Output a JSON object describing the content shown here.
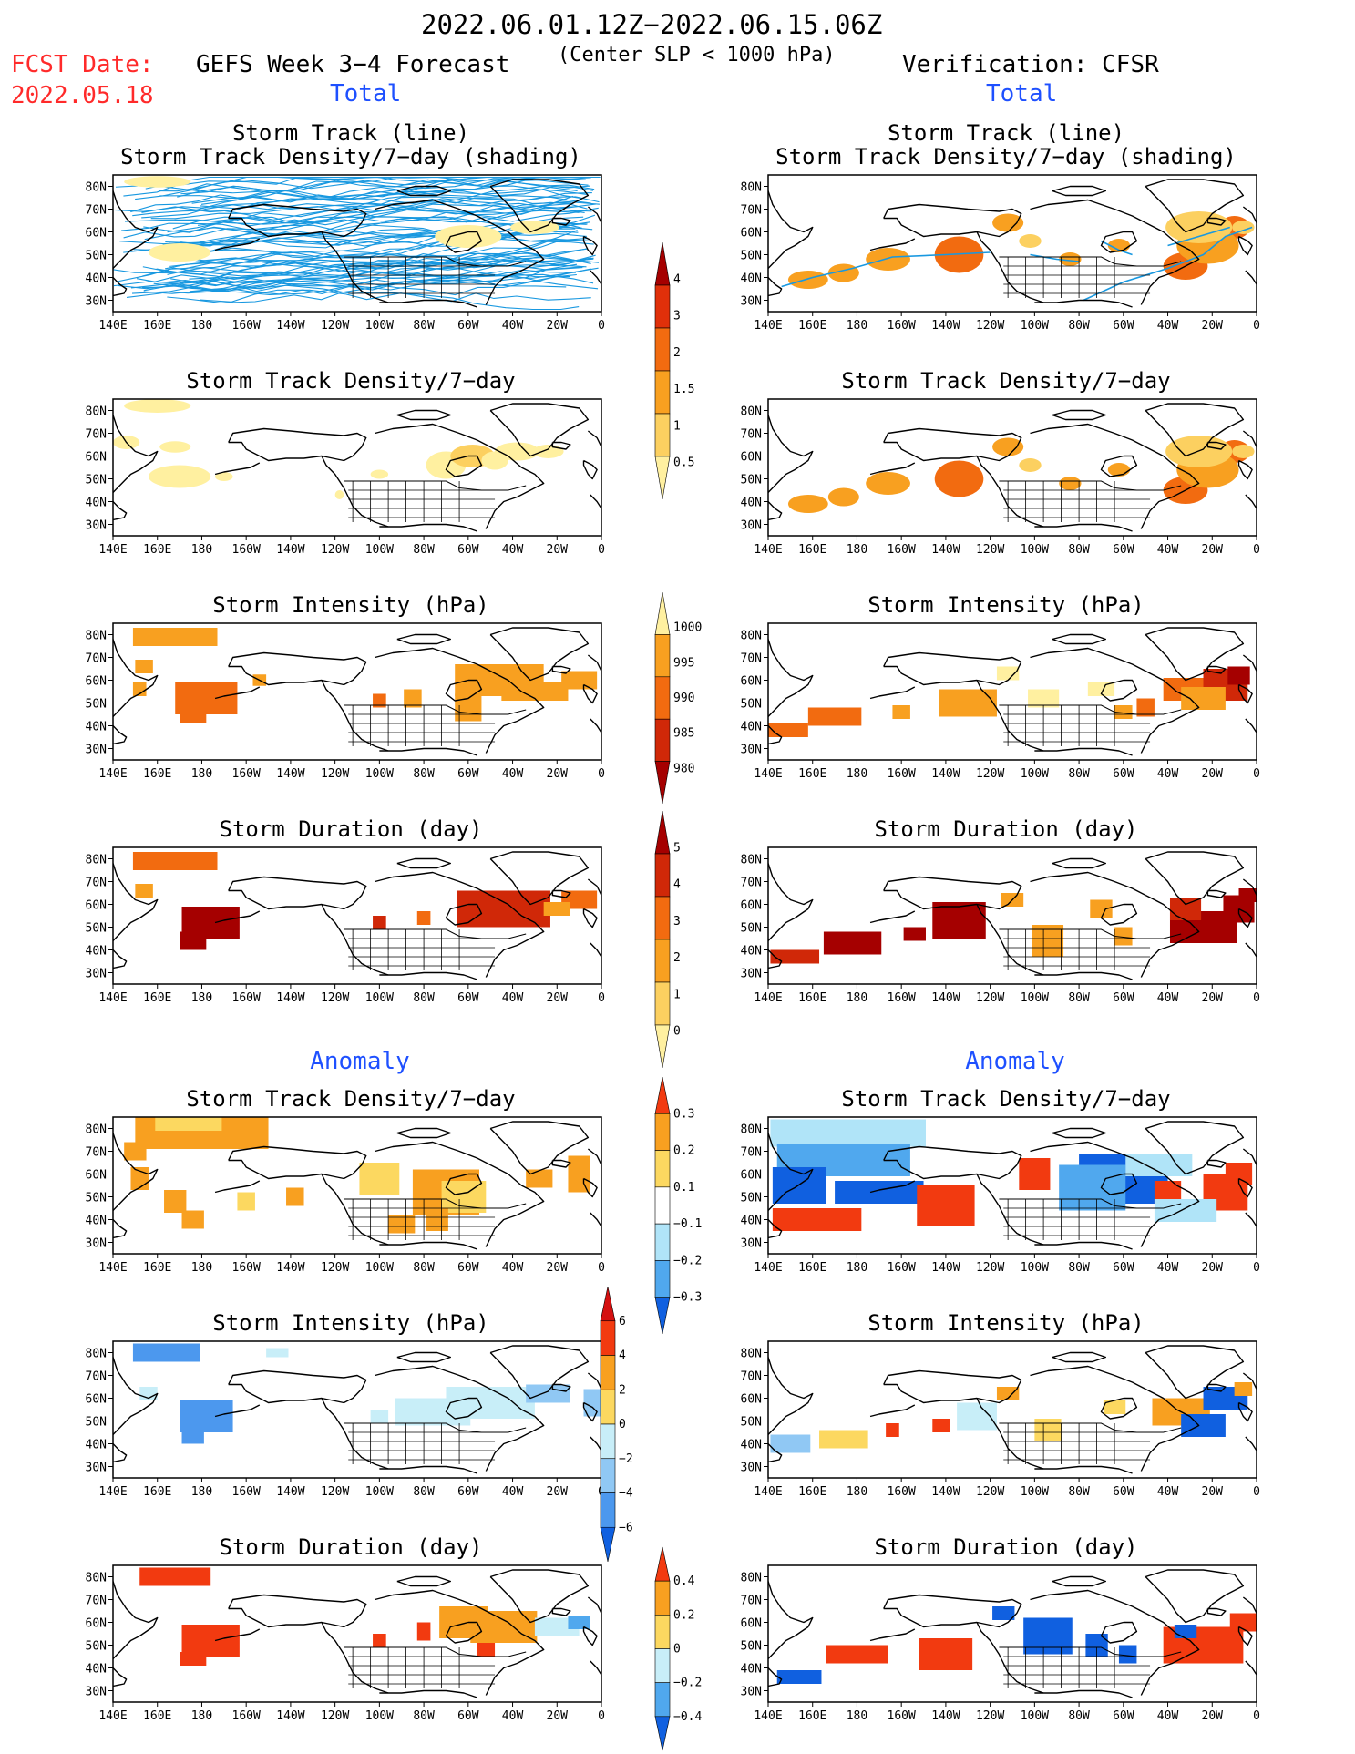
{
  "header": {
    "date_range": "2022.06.01.12Z−2022.06.15.06Z",
    "subtitle": "(Center SLP < 1000 hPa)",
    "fcst_label": "FCST Date:",
    "fcst_date": "2022.05.18",
    "left_title": "GEFS Week 3−4 Forecast",
    "right_title": "Verification: CFSR",
    "total_label": "Total",
    "anomaly_label": "Anomaly"
  },
  "axes": {
    "lat_labels": [
      "80N",
      "70N",
      "60N",
      "50N",
      "40N",
      "30N"
    ],
    "lon_labels": [
      "140E",
      "160E",
      "180",
      "160W",
      "140W",
      "120W",
      "100W",
      "80W",
      "60W",
      "40W",
      "20W",
      "0"
    ]
  },
  "panel_titles": {
    "track_line": "Storm Track (line)",
    "track_shading": "Storm Track Density/7−day (shading)",
    "density": "Storm Track Density/7−day",
    "intensity": "Storm Intensity (hPa)",
    "duration": "Storm Duration (day)"
  },
  "colorbars": {
    "density_total": {
      "labels": [
        "4",
        "3",
        "2",
        "1.5",
        "1",
        "0.5"
      ],
      "colors": [
        "#a50000",
        "#e0300a",
        "#f26b10",
        "#f8a020",
        "#fcd060",
        "#fff0a0"
      ]
    },
    "intensity_total": {
      "labels": [
        "1000",
        "995",
        "990",
        "985",
        "980"
      ],
      "colors": [
        "#fff0a0",
        "#f8a020",
        "#f26b10",
        "#d02808",
        "#a50000"
      ]
    },
    "duration_total": {
      "labels": [
        "5",
        "4",
        "3",
        "2",
        "1",
        "0"
      ],
      "colors": [
        "#a50000",
        "#d02808",
        "#f26b10",
        "#f8a020",
        "#fcd060",
        "#fff0a0"
      ]
    },
    "density_anom": {
      "labels": [
        "0.3",
        "0.2",
        "0.1",
        "−0.1",
        "−0.2",
        "−0.3"
      ],
      "colors": [
        "#f23a10",
        "#f8a020",
        "#fcd860",
        "#ffffff",
        "#b0e4f8",
        "#50a8ee",
        "#1060e0"
      ]
    },
    "intensity_anom": {
      "labels": [
        "6",
        "4",
        "2",
        "0",
        "−2",
        "−4",
        "−6"
      ],
      "colors": [
        "#d41010",
        "#f23a10",
        "#f8a020",
        "#fcd860",
        "#c8eef8",
        "#90c8f4",
        "#4c98ee",
        "#1060e0"
      ]
    },
    "duration_anom": {
      "labels": [
        "0.4",
        "0.2",
        "0",
        "−0.2",
        "−0.4"
      ],
      "colors": [
        "#f23a10",
        "#f8a020",
        "#fcd860",
        "#c8eef8",
        "#50a8ee",
        "#1060e0"
      ]
    }
  }
}
